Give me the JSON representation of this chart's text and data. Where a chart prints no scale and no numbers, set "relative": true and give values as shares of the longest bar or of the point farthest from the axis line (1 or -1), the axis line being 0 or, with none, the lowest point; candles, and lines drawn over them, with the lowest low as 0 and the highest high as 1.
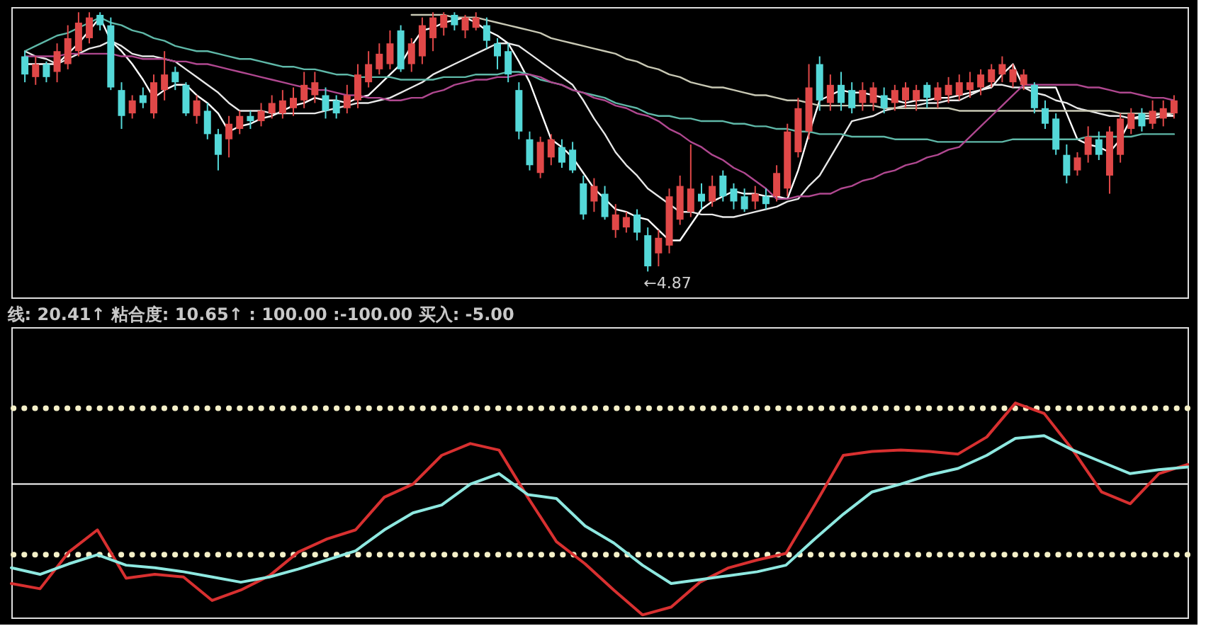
{
  "chart_data": [
    {
      "type": "candlestick",
      "relative": true,
      "tick_labels": false,
      "categories": [
        null,
        null,
        null,
        null,
        null,
        null,
        null,
        null,
        null,
        null,
        null,
        null,
        null,
        null,
        null,
        null,
        null,
        null,
        null,
        null,
        null,
        null,
        null,
        null,
        null,
        null,
        null,
        null,
        null,
        null,
        null,
        null,
        null,
        null,
        null,
        null,
        null,
        null,
        null,
        null,
        null,
        null,
        null,
        null,
        null,
        null,
        null,
        null,
        null,
        null,
        null,
        null,
        null,
        null,
        null,
        null,
        null,
        null,
        null,
        null,
        null,
        null,
        null,
        null,
        null,
        null,
        null,
        null,
        null,
        null,
        null,
        null,
        null,
        null,
        null,
        null,
        null,
        null,
        null,
        null,
        null,
        null,
        null,
        null,
        null,
        null,
        null,
        null,
        null,
        null,
        null,
        null,
        null,
        null,
        null,
        null,
        null,
        null,
        null,
        null,
        null,
        null,
        null,
        null,
        null,
        null,
        null,
        null
      ],
      "ohlc": [
        [
          0.83,
          0.85,
          0.73,
          0.76
        ],
        [
          0.75,
          0.83,
          0.72,
          0.8
        ],
        [
          0.8,
          0.81,
          0.73,
          0.75
        ],
        [
          0.77,
          0.88,
          0.73,
          0.85
        ],
        [
          0.8,
          0.95,
          0.78,
          0.9
        ],
        [
          0.85,
          1,
          0.83,
          0.96
        ],
        [
          0.9,
          1,
          0.88,
          0.98
        ],
        [
          0.99,
          1,
          0.93,
          0.95
        ],
        [
          0.95,
          0.98,
          0.7,
          0.71
        ],
        [
          0.7,
          0.73,
          0.55,
          0.6
        ],
        [
          0.61,
          0.68,
          0.59,
          0.66
        ],
        [
          0.68,
          0.71,
          0.63,
          0.65
        ],
        [
          0.61,
          0.76,
          0.59,
          0.73
        ],
        [
          0.7,
          0.85,
          0.66,
          0.76
        ],
        [
          0.77,
          0.79,
          0.7,
          0.73
        ],
        [
          0.72,
          0.73,
          0.6,
          0.61
        ],
        [
          0.6,
          0.68,
          0.57,
          0.66
        ],
        [
          0.62,
          0.65,
          0.51,
          0.53
        ],
        [
          0.53,
          0.55,
          0.39,
          0.45
        ],
        [
          0.51,
          0.6,
          0.44,
          0.57
        ],
        [
          0.55,
          0.62,
          0.53,
          0.6
        ],
        [
          0.6,
          0.62,
          0.55,
          0.58
        ],
        [
          0.58,
          0.65,
          0.56,
          0.62
        ],
        [
          0.61,
          0.68,
          0.59,
          0.65
        ],
        [
          0.61,
          0.7,
          0.59,
          0.66
        ],
        [
          0.63,
          0.71,
          0.6,
          0.67
        ],
        [
          0.66,
          0.77,
          0.63,
          0.72
        ],
        [
          0.68,
          0.77,
          0.65,
          0.73
        ],
        [
          0.68,
          0.71,
          0.59,
          0.62
        ],
        [
          0.66,
          0.68,
          0.59,
          0.61
        ],
        [
          0.63,
          0.72,
          0.61,
          0.68
        ],
        [
          0.66,
          0.8,
          0.63,
          0.76
        ],
        [
          0.73,
          0.85,
          0.71,
          0.8
        ],
        [
          0.78,
          0.88,
          0.76,
          0.84
        ],
        [
          0.8,
          0.93,
          0.78,
          0.88
        ],
        [
          0.93,
          0.95,
          0.77,
          0.78
        ],
        [
          0.8,
          0.9,
          0.77,
          0.88
        ],
        [
          0.83,
          0.98,
          0.8,
          0.95
        ],
        [
          0.9,
          1,
          0.85,
          0.98
        ],
        [
          0.94,
          1,
          0.91,
          0.99
        ],
        [
          0.99,
          1,
          0.93,
          0.95
        ],
        [
          0.93,
          0.99,
          0.9,
          0.98
        ],
        [
          0.94,
          1,
          0.93,
          0.98
        ],
        [
          0.95,
          0.98,
          0.86,
          0.89
        ],
        [
          0.88,
          0.9,
          0.78,
          0.83
        ],
        [
          0.85,
          0.88,
          0.73,
          0.76
        ],
        [
          0.7,
          0.73,
          0.51,
          0.54
        ],
        [
          0.51,
          0.54,
          0.39,
          0.41
        ],
        [
          0.38,
          0.52,
          0.36,
          0.5
        ],
        [
          0.44,
          0.53,
          0.41,
          0.51
        ],
        [
          0.48,
          0.51,
          0.4,
          0.42
        ],
        [
          0.47,
          0.5,
          0.38,
          0.39
        ],
        [
          0.34,
          0.37,
          0.2,
          0.22
        ],
        [
          0.27,
          0.36,
          0.23,
          0.33
        ],
        [
          0.3,
          0.33,
          0.2,
          0.21
        ],
        [
          0.16,
          0.26,
          0.13,
          0.22
        ],
        [
          0.17,
          0.23,
          0.15,
          0.21
        ],
        [
          0.22,
          0.24,
          0.12,
          0.15
        ],
        [
          0.14,
          0.17,
          0,
          0.02
        ],
        [
          0.07,
          0.16,
          0.02,
          0.13
        ],
        [
          0.1,
          0.32,
          0.07,
          0.29
        ],
        [
          0.2,
          0.37,
          0.18,
          0.33
        ],
        [
          0.23,
          0.49,
          0.21,
          0.32
        ],
        [
          0.3,
          0.34,
          0.24,
          0.27
        ],
        [
          0.27,
          0.37,
          0.25,
          0.33
        ],
        [
          0.37,
          0.39,
          0.27,
          0.29
        ],
        [
          0.32,
          0.34,
          0.24,
          0.27
        ],
        [
          0.29,
          0.32,
          0.23,
          0.24
        ],
        [
          0.27,
          0.33,
          0.24,
          0.3
        ],
        [
          0.29,
          0.32,
          0.24,
          0.26
        ],
        [
          0.29,
          0.41,
          0.27,
          0.38
        ],
        [
          0.32,
          0.57,
          0.29,
          0.54
        ],
        [
          0.46,
          0.67,
          0.44,
          0.63
        ],
        [
          0.54,
          0.8,
          0.51,
          0.71
        ],
        [
          0.8,
          0.83,
          0.62,
          0.66
        ],
        [
          0.65,
          0.76,
          0.62,
          0.72
        ],
        [
          0.72,
          0.77,
          0.62,
          0.65
        ],
        [
          0.7,
          0.73,
          0.61,
          0.63
        ],
        [
          0.65,
          0.73,
          0.62,
          0.7
        ],
        [
          0.65,
          0.73,
          0.62,
          0.71
        ],
        [
          0.68,
          0.71,
          0.61,
          0.63
        ],
        [
          0.65,
          0.72,
          0.62,
          0.7
        ],
        [
          0.66,
          0.73,
          0.63,
          0.71
        ],
        [
          0.66,
          0.72,
          0.62,
          0.7
        ],
        [
          0.72,
          0.73,
          0.63,
          0.67
        ],
        [
          0.66,
          0.73,
          0.63,
          0.71
        ],
        [
          0.68,
          0.75,
          0.65,
          0.72
        ],
        [
          0.68,
          0.76,
          0.66,
          0.73
        ],
        [
          0.7,
          0.77,
          0.67,
          0.73
        ],
        [
          0.71,
          0.78,
          0.68,
          0.76
        ],
        [
          0.73,
          0.8,
          0.71,
          0.78
        ],
        [
          0.76,
          0.83,
          0.73,
          0.8
        ],
        [
          0.73,
          0.8,
          0.71,
          0.78
        ],
        [
          0.72,
          0.78,
          0.7,
          0.76
        ],
        [
          0.72,
          0.73,
          0.61,
          0.63
        ],
        [
          0.63,
          0.66,
          0.55,
          0.57
        ],
        [
          0.59,
          0.61,
          0.45,
          0.47
        ],
        [
          0.45,
          0.49,
          0.34,
          0.37
        ],
        [
          0.39,
          0.46,
          0.37,
          0.44
        ],
        [
          0.45,
          0.56,
          0.42,
          0.52
        ],
        [
          0.51,
          0.54,
          0.43,
          0.45
        ],
        [
          0.37,
          0.56,
          0.3,
          0.54
        ],
        [
          0.45,
          0.61,
          0.42,
          0.59
        ],
        [
          0.55,
          0.63,
          0.53,
          0.61
        ],
        [
          0.61,
          0.63,
          0.54,
          0.56
        ],
        [
          0.57,
          0.66,
          0.55,
          0.62
        ],
        [
          0.59,
          0.66,
          0.56,
          0.63
        ],
        [
          0.61,
          0.68,
          0.59,
          0.66
        ]
      ],
      "colors": [
        "#54d8d8",
        "#e04848",
        "#54d8d8",
        "#e04848",
        "#e04848",
        "#e04848",
        "#e04848",
        "#54d8d8",
        "#54d8d8",
        "#54d8d8",
        "#e04848",
        "#54d8d8",
        "#e04848",
        "#e04848",
        "#54d8d8",
        "#54d8d8",
        "#e04848",
        "#54d8d8",
        "#54d8d8",
        "#e04848",
        "#e04848",
        "#54d8d8",
        "#e04848",
        "#e04848",
        "#e04848",
        "#e04848",
        "#e04848",
        "#e04848",
        "#54d8d8",
        "#54d8d8",
        "#e04848",
        "#e04848",
        "#e04848",
        "#e04848",
        "#e04848",
        "#54d8d8",
        "#e04848",
        "#e04848",
        "#e04848",
        "#e04848",
        "#54d8d8",
        "#e04848",
        "#e04848",
        "#54d8d8",
        "#54d8d8",
        "#54d8d8",
        "#54d8d8",
        "#54d8d8",
        "#e04848",
        "#e04848",
        "#54d8d8",
        "#54d8d8",
        "#54d8d8",
        "#e04848",
        "#54d8d8",
        "#e04848",
        "#e04848",
        "#54d8d8",
        "#54d8d8",
        "#e04848",
        "#e04848",
        "#e04848",
        "#e04848",
        "#54d8d8",
        "#e04848",
        "#54d8d8",
        "#54d8d8",
        "#54d8d8",
        "#e04848",
        "#54d8d8",
        "#e04848",
        "#e04848",
        "#e04848",
        "#e04848",
        "#54d8d8",
        "#e04848",
        "#54d8d8",
        "#54d8d8",
        "#e04848",
        "#e04848",
        "#54d8d8",
        "#e04848",
        "#e04848",
        "#e04848",
        "#54d8d8",
        "#e04848",
        "#e04848",
        "#e04848",
        "#e04848",
        "#e04848",
        "#e04848",
        "#e04848",
        "#e04848",
        "#e04848",
        "#54d8d8",
        "#54d8d8",
        "#54d8d8",
        "#54d8d8",
        "#e04848",
        "#e04848",
        "#54d8d8",
        "#e04848",
        "#e04848",
        "#e04848",
        "#54d8d8",
        "#e04848",
        "#e04848",
        "#e04848"
      ],
      "series": [
        {
          "type": "line",
          "color": "#ffffff",
          "values": [
            0.8,
            0.8,
            0.8,
            0.8,
            0.84,
            0.88,
            0.93,
            0.98,
            0.89,
            0.85,
            0.8,
            0.74,
            0.67,
            0.7,
            0.72,
            0.72,
            0.68,
            0.65,
            0.61,
            0.54,
            0.56,
            0.57,
            0.59,
            0.6,
            0.62,
            0.64,
            0.65,
            0.67,
            0.66,
            0.66,
            0.65,
            0.67,
            0.68,
            0.72,
            0.76,
            0.8,
            0.87,
            0.93,
            0.94,
            0.96,
            0.97,
            0.98,
            0.96,
            0.93,
            0.91,
            0.88,
            0.81,
            0.73,
            0.62,
            0.51,
            0.48,
            0.44,
            0.38,
            0.32,
            0.28,
            0.24,
            0.23,
            0.21,
            0.2,
            0.16,
            0.12,
            0.12,
            0.18,
            0.24,
            0.27,
            0.29,
            0.31,
            0.3,
            0.3,
            0.29,
            0.29,
            0.28,
            0.39,
            0.53,
            0.66,
            0.68,
            0.7,
            0.69,
            0.69,
            0.68,
            0.67,
            0.66,
            0.65,
            0.66,
            0.66,
            0.67,
            0.67,
            0.68,
            0.69,
            0.7,
            0.71,
            0.76,
            0.8,
            0.71,
            0.71,
            0.71,
            0.71,
            0.61,
            0.51,
            0.49,
            0.48,
            0.46,
            0.51,
            0.59,
            0.6,
            0.6,
            0.61,
            0.6
          ]
        },
        {
          "type": "line",
          "color": "#e8e8e8",
          "values": [
            0.85,
            0.83,
            0.82,
            0.8,
            0.82,
            0.84,
            0.86,
            0.87,
            0.89,
            0.87,
            0.84,
            0.83,
            0.83,
            0.82,
            0.81,
            0.78,
            0.75,
            0.72,
            0.69,
            0.65,
            0.62,
            0.62,
            0.62,
            0.61,
            0.61,
            0.61,
            0.61,
            0.61,
            0.62,
            0.63,
            0.64,
            0.65,
            0.65,
            0.66,
            0.67,
            0.69,
            0.71,
            0.73,
            0.76,
            0.78,
            0.8,
            0.82,
            0.84,
            0.86,
            0.88,
            0.88,
            0.87,
            0.84,
            0.81,
            0.78,
            0.75,
            0.72,
            0.66,
            0.59,
            0.53,
            0.46,
            0.41,
            0.37,
            0.32,
            0.29,
            0.26,
            0.23,
            0.23,
            0.22,
            0.22,
            0.21,
            0.21,
            0.22,
            0.23,
            0.24,
            0.25,
            0.27,
            0.28,
            0.33,
            0.37,
            0.44,
            0.51,
            0.58,
            0.59,
            0.6,
            0.62,
            0.63,
            0.64,
            0.64,
            0.65,
            0.65,
            0.66,
            0.66,
            0.68,
            0.7,
            0.72,
            0.72,
            0.71,
            0.71,
            0.69,
            0.68,
            0.66,
            0.65,
            0.63,
            0.62,
            0.61,
            0.6,
            0.6,
            0.59,
            0.59,
            0.59,
            0.6,
            0.6
          ]
        },
        {
          "type": "line",
          "color": "#5fb8a8",
          "values": [
            0.85,
            0.87,
            0.89,
            0.91,
            0.92,
            0.94,
            0.96,
            0.98,
            0.96,
            0.95,
            0.93,
            0.92,
            0.9,
            0.89,
            0.87,
            0.86,
            0.85,
            0.85,
            0.84,
            0.83,
            0.82,
            0.82,
            0.81,
            0.8,
            0.79,
            0.79,
            0.78,
            0.78,
            0.77,
            0.76,
            0.76,
            0.75,
            0.75,
            0.75,
            0.75,
            0.74,
            0.74,
            0.74,
            0.74,
            0.75,
            0.75,
            0.75,
            0.76,
            0.76,
            0.76,
            0.77,
            0.77,
            0.76,
            0.74,
            0.73,
            0.72,
            0.7,
            0.69,
            0.68,
            0.67,
            0.65,
            0.64,
            0.63,
            0.61,
            0.6,
            0.6,
            0.59,
            0.59,
            0.58,
            0.58,
            0.58,
            0.57,
            0.57,
            0.56,
            0.56,
            0.55,
            0.55,
            0.54,
            0.54,
            0.53,
            0.53,
            0.53,
            0.52,
            0.52,
            0.52,
            0.52,
            0.51,
            0.51,
            0.51,
            0.51,
            0.5,
            0.5,
            0.5,
            0.5,
            0.5,
            0.5,
            0.5,
            0.51,
            0.51,
            0.51,
            0.51,
            0.51,
            0.51,
            0.51,
            0.52,
            0.52,
            0.52,
            0.52,
            0.52,
            0.53,
            0.53,
            0.53,
            0.53
          ]
        },
        {
          "type": "line",
          "color": "#c8c8b4",
          "values": [
            null,
            null,
            null,
            null,
            null,
            null,
            null,
            null,
            null,
            null,
            null,
            null,
            null,
            null,
            null,
            null,
            null,
            null,
            null,
            null,
            null,
            null,
            null,
            null,
            null,
            null,
            null,
            null,
            null,
            null,
            null,
            null,
            null,
            null,
            null,
            null,
            0.99,
            0.99,
            0.99,
            0.99,
            0.98,
            0.98,
            0.98,
            0.97,
            0.96,
            0.95,
            0.94,
            0.93,
            0.92,
            0.9,
            0.89,
            0.88,
            0.87,
            0.86,
            0.85,
            0.84,
            0.82,
            0.81,
            0.79,
            0.78,
            0.76,
            0.75,
            0.73,
            0.72,
            0.71,
            0.71,
            0.7,
            0.69,
            0.68,
            0.68,
            0.67,
            0.66,
            0.66,
            0.65,
            0.64,
            0.64,
            0.64,
            0.64,
            0.64,
            0.64,
            0.63,
            0.63,
            0.63,
            0.63,
            0.63,
            0.63,
            0.63,
            0.62,
            0.62,
            0.62,
            0.62,
            0.62,
            0.62,
            0.62,
            0.62,
            0.62,
            0.62,
            0.62,
            0.62,
            0.62,
            0.62,
            0.62,
            0.61,
            0.61,
            0.61,
            0.61,
            0.61,
            0.61
          ]
        },
        {
          "type": "line",
          "color": "#b04890",
          "values": [
            0.83,
            0.83,
            0.83,
            0.83,
            0.84,
            0.84,
            0.84,
            0.84,
            0.84,
            0.83,
            0.83,
            0.82,
            0.82,
            0.82,
            0.81,
            0.81,
            0.8,
            0.8,
            0.79,
            0.78,
            0.77,
            0.76,
            0.75,
            0.74,
            0.73,
            0.72,
            0.71,
            0.7,
            0.7,
            0.69,
            0.68,
            0.68,
            0.67,
            0.67,
            0.66,
            0.66,
            0.67,
            0.67,
            0.69,
            0.7,
            0.72,
            0.73,
            0.74,
            0.74,
            0.75,
            0.75,
            0.76,
            0.76,
            0.75,
            0.73,
            0.72,
            0.7,
            0.69,
            0.67,
            0.66,
            0.64,
            0.63,
            0.61,
            0.6,
            0.58,
            0.55,
            0.53,
            0.5,
            0.48,
            0.45,
            0.43,
            0.4,
            0.38,
            0.35,
            0.32,
            0.28,
            0.28,
            0.29,
            0.29,
            0.3,
            0.3,
            0.32,
            0.33,
            0.35,
            0.36,
            0.38,
            0.39,
            0.41,
            0.42,
            0.44,
            0.45,
            0.47,
            0.48,
            0.52,
            0.56,
            0.6,
            0.64,
            0.68,
            0.72,
            0.72,
            0.72,
            0.72,
            0.72,
            0.72,
            0.71,
            0.71,
            0.7,
            0.69,
            0.69,
            0.68,
            0.67,
            0.67,
            0.66
          ]
        }
      ],
      "annotations": [
        "←4.87"
      ]
    },
    {
      "type": "line",
      "relative": true,
      "tick_labels": false,
      "title": "线: 20.41↑  粘合度: 10.65↑  : 100.00  :-100.00   买入: -5.00",
      "categories": [
        null,
        null,
        null,
        null,
        null,
        null,
        null,
        null,
        null,
        null,
        null,
        null,
        null,
        null,
        null,
        null,
        null,
        null,
        null,
        null,
        null,
        null,
        null,
        null,
        null,
        null,
        null,
        null,
        null,
        null,
        null,
        null,
        null,
        null,
        null,
        null,
        null,
        null,
        null,
        null,
        null,
        null
      ],
      "series": [
        {
          "color": "#d83030",
          "values": [
            -0.76,
            -0.8,
            -0.52,
            -0.35,
            -0.72,
            -0.69,
            -0.71,
            -0.89,
            -0.81,
            -0.7,
            -0.52,
            -0.42,
            -0.35,
            -0.1,
            0,
            0.22,
            0.31,
            0.26,
            -0.1,
            -0.44,
            -0.61,
            -0.81,
            -1,
            -0.94,
            -0.75,
            -0.64,
            -0.58,
            -0.53,
            -0.16,
            0.22,
            0.25,
            0.26,
            0.25,
            0.23,
            0.36,
            0.62,
            0.54,
            0.26,
            -0.06,
            -0.15,
            0.08,
            0.15
          ]
        },
        {
          "color": "#8ee8e0",
          "values": [
            -0.64,
            -0.69,
            -0.61,
            -0.54,
            -0.62,
            -0.64,
            -0.67,
            -0.71,
            -0.75,
            -0.71,
            -0.65,
            -0.58,
            -0.51,
            -0.35,
            -0.22,
            -0.16,
            0,
            0.08,
            -0.08,
            -0.11,
            -0.32,
            -0.45,
            -0.62,
            -0.76,
            -0.73,
            -0.7,
            -0.67,
            -0.62,
            -0.42,
            -0.23,
            -0.06,
            0,
            0.07,
            0.12,
            0.22,
            0.35,
            0.37,
            0.26,
            0.17,
            0.08,
            0.11,
            0.13
          ]
        }
      ],
      "ref_lines": [
        {
          "axis": "y",
          "value": 0.58,
          "color": "#f5f0c8",
          "line_style": "dotted"
        },
        {
          "axis": "y",
          "value": 0,
          "color": "#ffffff",
          "line_style": "solid"
        },
        {
          "axis": "y",
          "value": -0.54,
          "color": "#f5f0c8",
          "line_style": "dotted"
        }
      ]
    }
  ]
}
